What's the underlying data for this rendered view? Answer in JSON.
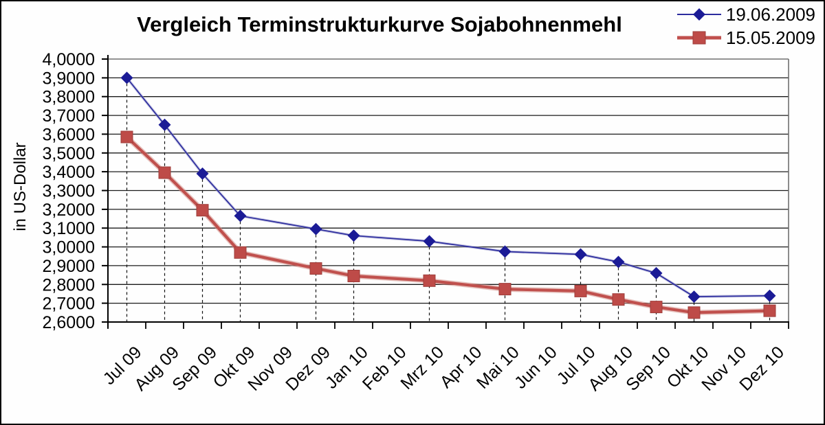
{
  "chart_data": {
    "type": "line",
    "title": "Vergleich Terminstrukturkurve Sojabohnenmehl",
    "xlabel": "",
    "ylabel": "in US-Dollar",
    "ylim": [
      2.6,
      4.0
    ],
    "y_tick_step": 0.1,
    "y_tick_labels": [
      "4,0000",
      "3,9000",
      "3,8000",
      "3,7000",
      "3,6000",
      "3,5000",
      "3,4000",
      "3,3000",
      "3,2000",
      "3,1000",
      "3,0000",
      "2,9000",
      "2,8000",
      "2,7000",
      "2,6000"
    ],
    "grid": true,
    "legend_position": "top-right",
    "categories": [
      "Jul 09",
      "Aug 09",
      "Sep 09",
      "Okt 09",
      "Nov 09",
      "Dez 09",
      "Jan 10",
      "Feb 10",
      "Mrz 10",
      "Apr 10",
      "Mai 10",
      "Jun 10",
      "Jul 10",
      "Aug 10",
      "Sep 10",
      "Okt 10",
      "Nov 10",
      "Dez 10"
    ],
    "series": [
      {
        "name": "19.06.2009",
        "marker": "diamond",
        "marker_color": "#1b1b96",
        "line_color": "#2b2b9e",
        "values": [
          3.9,
          3.65,
          3.39,
          3.165,
          null,
          3.095,
          3.06,
          null,
          3.03,
          null,
          2.975,
          null,
          2.96,
          2.92,
          2.86,
          2.735,
          null,
          2.74
        ]
      },
      {
        "name": "15.05.2009",
        "marker": "square",
        "marker_color": "#be4b48",
        "line_color": "#c0504d",
        "values": [
          3.585,
          3.395,
          3.195,
          2.97,
          null,
          2.885,
          2.845,
          null,
          2.82,
          null,
          2.775,
          null,
          2.765,
          2.72,
          2.68,
          2.65,
          null,
          2.66
        ]
      }
    ],
    "drop_lines": "dashed vertical lines from upper series points to x-axis",
    "colors": {
      "gridline": "#1a1a1a",
      "axis": "#000000",
      "plot_frame": "#6e6e6e",
      "background": "#fefefe",
      "text": "#000000"
    }
  }
}
